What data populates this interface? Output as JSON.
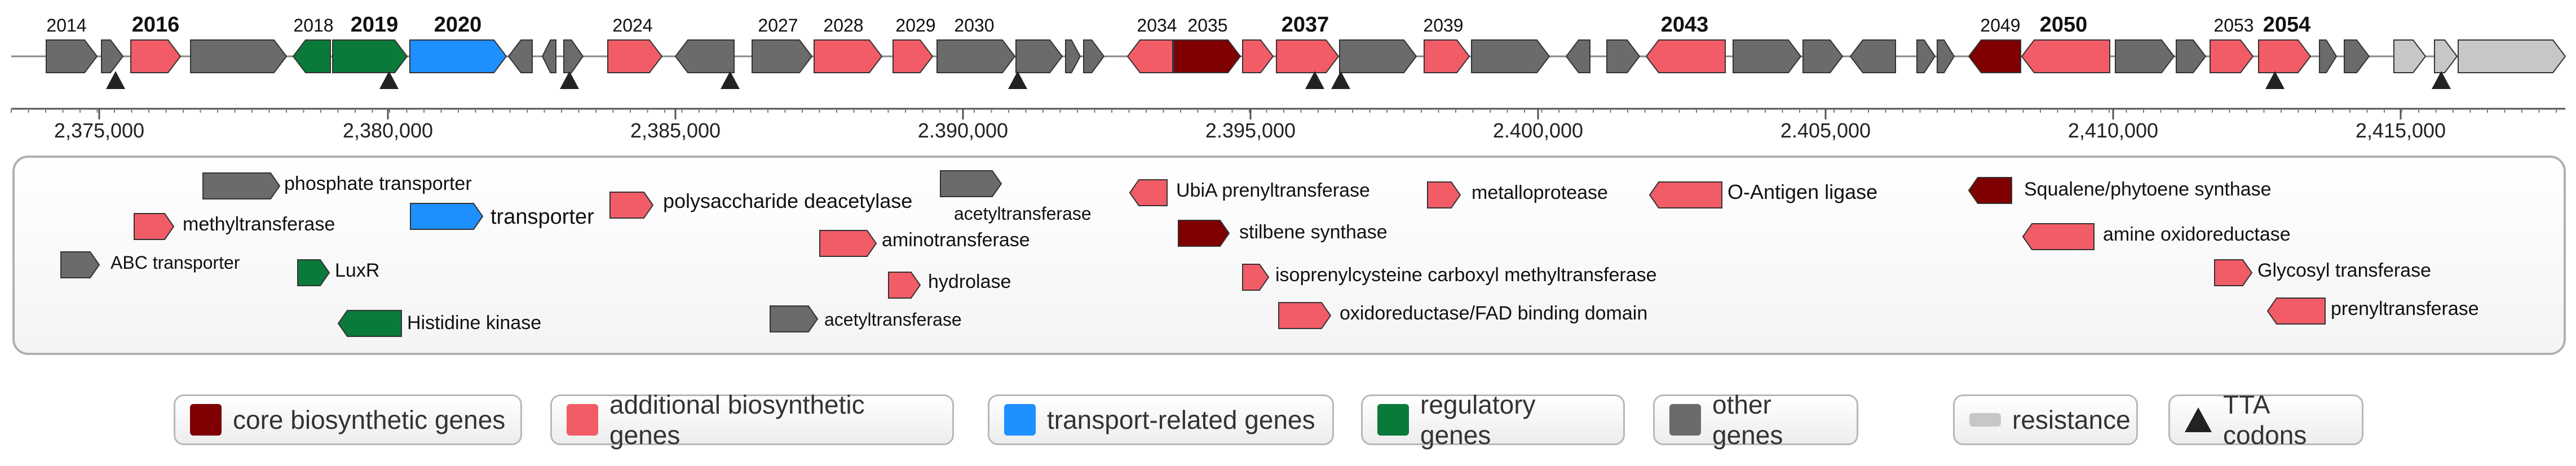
{
  "colors": {
    "core": "#7f0000",
    "additional": "#f25c67",
    "transport": "#1e90ff",
    "regulatory": "#0a7a3a",
    "other": "#6b6b6b",
    "resistance": "#c7c7c7",
    "tta": "#222222"
  },
  "gene_numbers": [
    "2014",
    "2016",
    "2018",
    "2019",
    "2020",
    "2024",
    "2027",
    "2028",
    "2029",
    "2030",
    "2034",
    "2035",
    "2037",
    "2039",
    "2043",
    "2049",
    "2050",
    "2053",
    "2054"
  ],
  "axis_ticks": [
    "2,375,000",
    "2,380,000",
    "2,385,000",
    "2.390,000",
    "2.395,000",
    "2.400,000",
    "2.405,000",
    "2,410,000",
    "2,415,000"
  ],
  "annotations": [
    "phosphate transporter",
    "methyltransferase",
    "transporter",
    "ABC transporter",
    "LuxR",
    "Histidine kinase",
    "polysaccharide deacetylase",
    "acetyltransferase",
    "aminotransferase",
    "hydrolase",
    "acetyltransferase",
    "UbiA prenyltransferase",
    "stilbene synthase",
    "isoprenylcysteine carboxyl methyltransferase",
    "oxidoreductase/FAD binding domain",
    "metalloprotease",
    "O-Antigen ligase",
    "Squalene/phytoene synthase",
    "amine oxidoreductase",
    "Glycosyl transferase",
    "prenyltransferase"
  ],
  "legend": {
    "core": "core biosynthetic genes",
    "additional": "additional biosynthetic genes",
    "transport": "transport-related genes",
    "regulatory": "regulatory genes",
    "other": "other genes",
    "resistance": "resistance",
    "tta": "TTA codons"
  }
}
